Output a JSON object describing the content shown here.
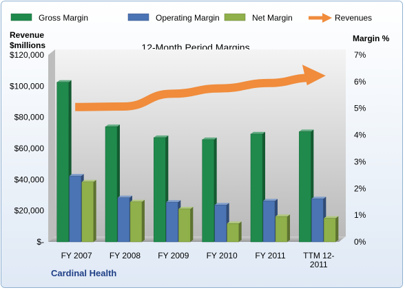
{
  "chart_data": {
    "type": "bar",
    "title": "12-Month Period Margins",
    "company_label": "Cardinal Health",
    "left_axis": {
      "title_line1": "Revenue",
      "title_line2": "$millions",
      "range": [
        0,
        120000
      ],
      "ticks": [
        "$-",
        "$20,000",
        "$40,000",
        "$60,000",
        "$80,000",
        "$100,000",
        "$120,000"
      ]
    },
    "right_axis": {
      "title": "Margin %",
      "range": [
        0,
        7
      ],
      "ticks": [
        "0%",
        "1%",
        "2%",
        "3%",
        "4%",
        "5%",
        "6%",
        "7%"
      ]
    },
    "categories": [
      [
        "FY 2007"
      ],
      [
        "FY 2008"
      ],
      [
        "FY 2009"
      ],
      [
        "FY 2010"
      ],
      [
        "FY 2011"
      ],
      [
        "TTM 12-",
        "2011"
      ]
    ],
    "series": [
      {
        "name": "Gross Margin",
        "axis": "left",
        "color": "#1f8a4c",
        "values": [
          102500,
          74000,
          67000,
          65700,
          69300,
          70800
        ]
      },
      {
        "name": "Operating Margin",
        "axis": "left",
        "color": "#4a74b4",
        "values": [
          42300,
          28400,
          25500,
          23700,
          26300,
          27700
        ]
      },
      {
        "name": "Net Margin",
        "axis": "left",
        "color": "#8fb04a",
        "values": [
          38500,
          25700,
          21200,
          11800,
          16300,
          15200
        ]
      },
      {
        "name": "Revenues",
        "axis": "right",
        "color": "#f08c3c",
        "values": [
          5.05,
          5.07,
          5.55,
          5.75,
          5.95,
          6.2
        ]
      }
    ],
    "legend_position": "top",
    "grid": false
  }
}
